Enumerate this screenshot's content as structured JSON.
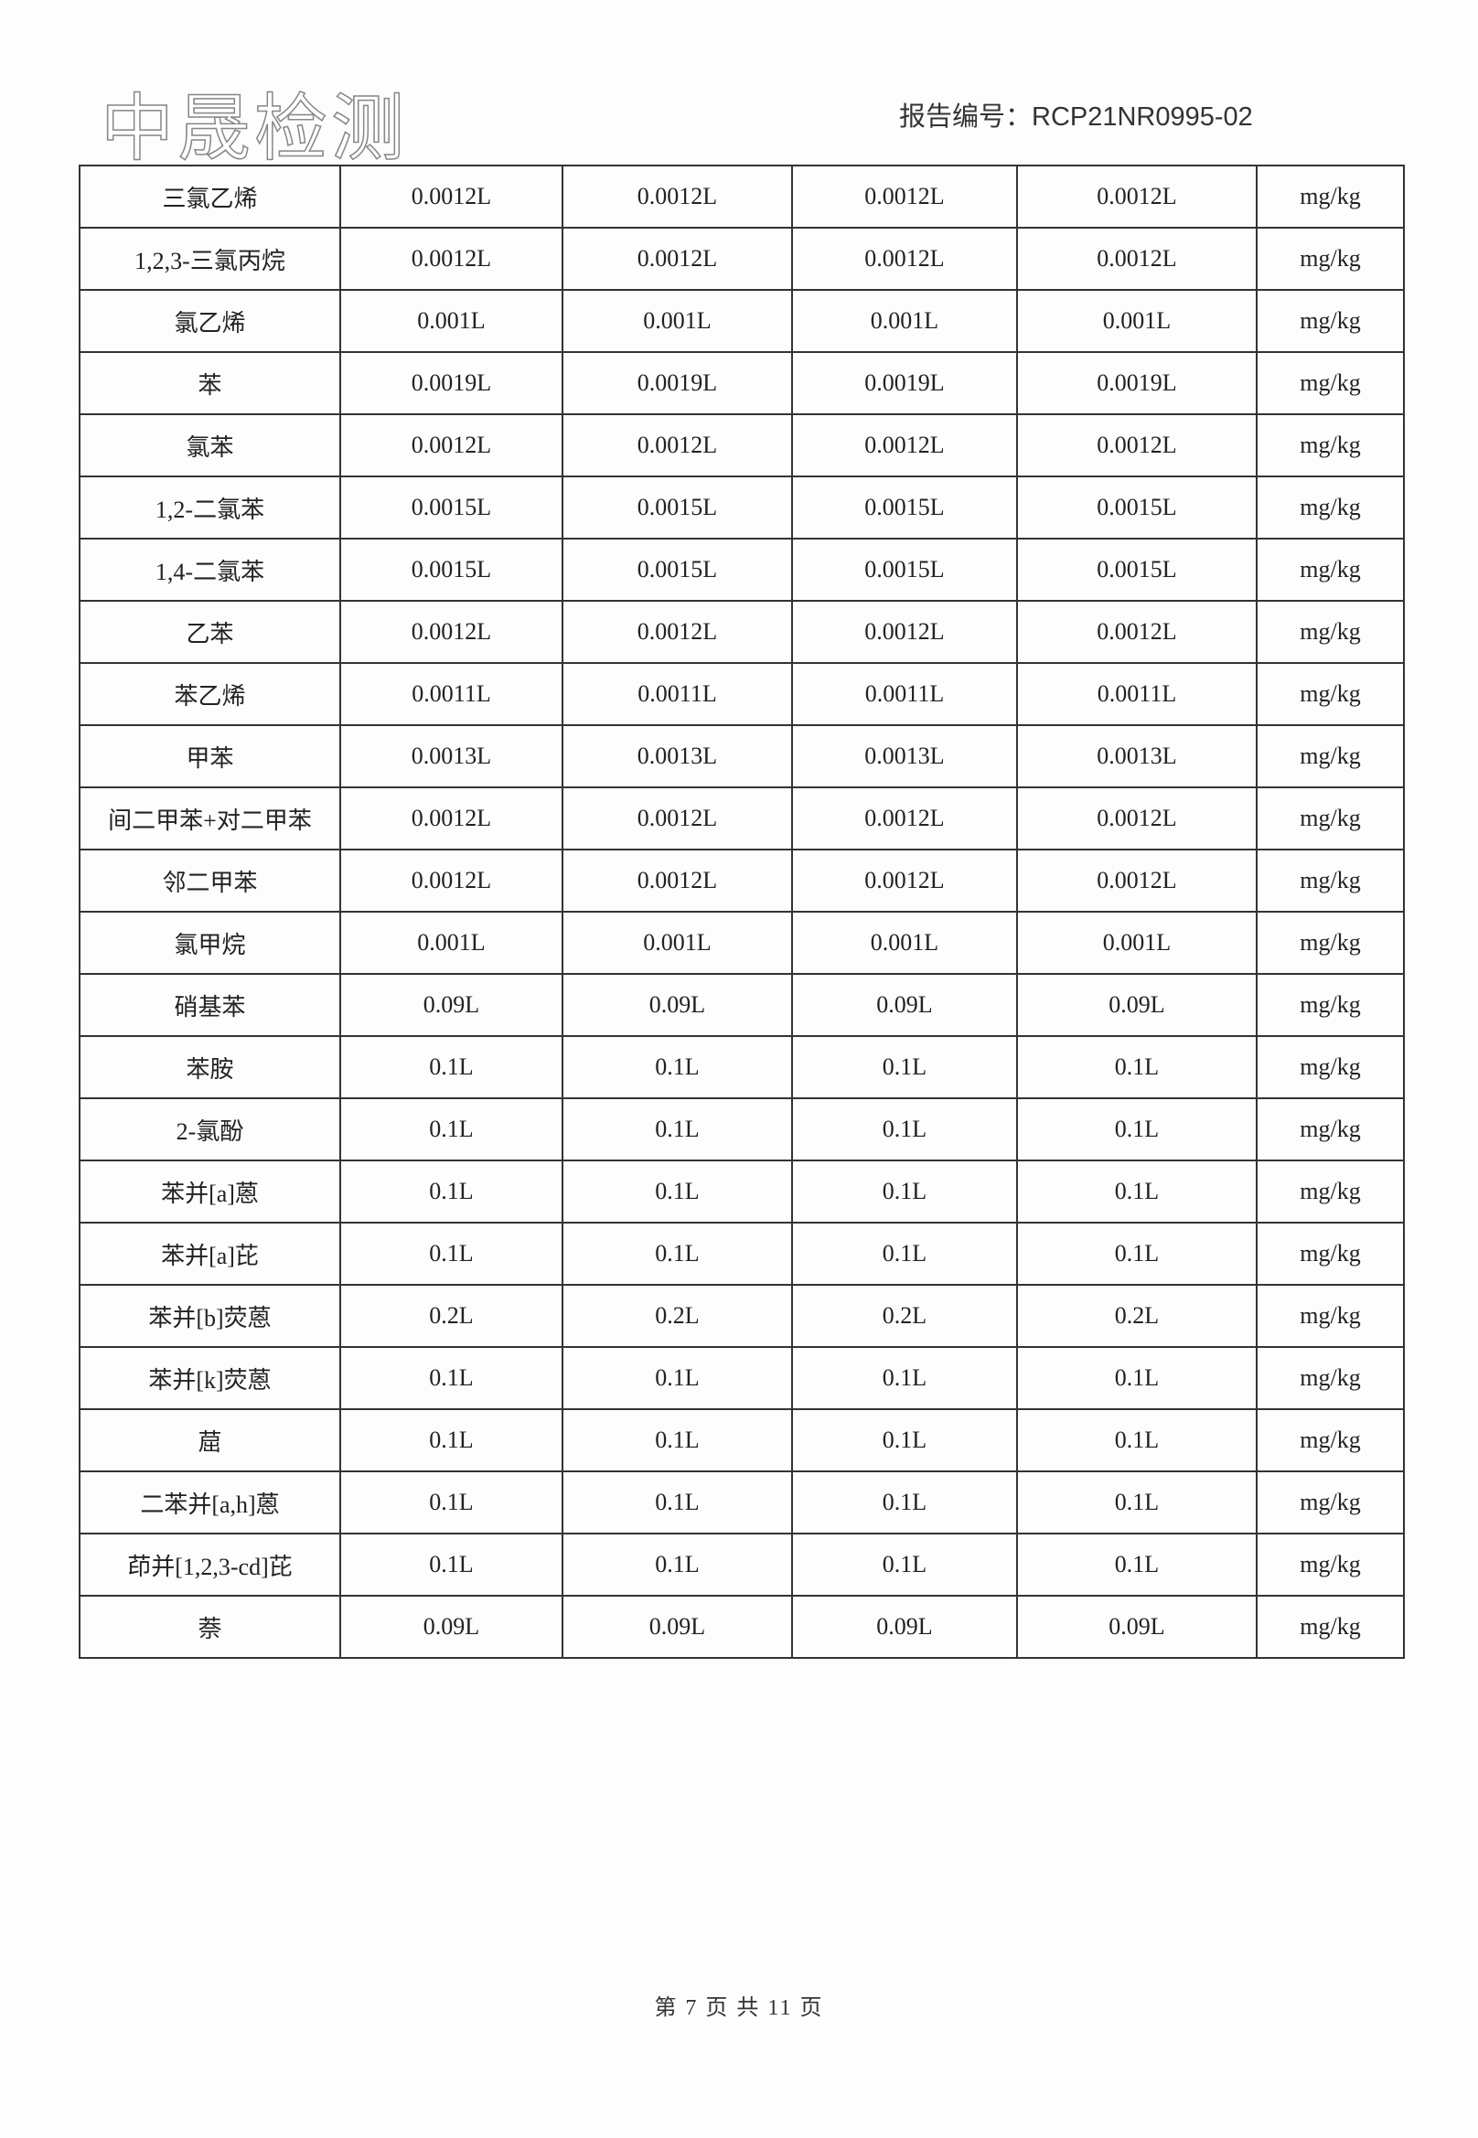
{
  "header": {
    "logo_text": "中晟检测",
    "report_number": "报告编号：RCP21NR0995-02"
  },
  "table": {
    "rows": [
      {
        "name": "三氯乙烯",
        "values": [
          "0.0012L",
          "0.0012L",
          "0.0012L",
          "0.0012L"
        ],
        "unit": "mg/kg"
      },
      {
        "name": "1,2,3-三氯丙烷",
        "values": [
          "0.0012L",
          "0.0012L",
          "0.0012L",
          "0.0012L"
        ],
        "unit": "mg/kg"
      },
      {
        "name": "氯乙烯",
        "values": [
          "0.001L",
          "0.001L",
          "0.001L",
          "0.001L"
        ],
        "unit": "mg/kg"
      },
      {
        "name": "苯",
        "values": [
          "0.0019L",
          "0.0019L",
          "0.0019L",
          "0.0019L"
        ],
        "unit": "mg/kg"
      },
      {
        "name": "氯苯",
        "values": [
          "0.0012L",
          "0.0012L",
          "0.0012L",
          "0.0012L"
        ],
        "unit": "mg/kg"
      },
      {
        "name": "1,2-二氯苯",
        "values": [
          "0.0015L",
          "0.0015L",
          "0.0015L",
          "0.0015L"
        ],
        "unit": "mg/kg"
      },
      {
        "name": "1,4-二氯苯",
        "values": [
          "0.0015L",
          "0.0015L",
          "0.0015L",
          "0.0015L"
        ],
        "unit": "mg/kg"
      },
      {
        "name": "乙苯",
        "values": [
          "0.0012L",
          "0.0012L",
          "0.0012L",
          "0.0012L"
        ],
        "unit": "mg/kg"
      },
      {
        "name": "苯乙烯",
        "values": [
          "0.0011L",
          "0.0011L",
          "0.0011L",
          "0.0011L"
        ],
        "unit": "mg/kg"
      },
      {
        "name": "甲苯",
        "values": [
          "0.0013L",
          "0.0013L",
          "0.0013L",
          "0.0013L"
        ],
        "unit": "mg/kg"
      },
      {
        "name": "间二甲苯+对二甲苯",
        "values": [
          "0.0012L",
          "0.0012L",
          "0.0012L",
          "0.0012L"
        ],
        "unit": "mg/kg"
      },
      {
        "name": "邻二甲苯",
        "values": [
          "0.0012L",
          "0.0012L",
          "0.0012L",
          "0.0012L"
        ],
        "unit": "mg/kg"
      },
      {
        "name": "氯甲烷",
        "values": [
          "0.001L",
          "0.001L",
          "0.001L",
          "0.001L"
        ],
        "unit": "mg/kg"
      },
      {
        "name": "硝基苯",
        "values": [
          "0.09L",
          "0.09L",
          "0.09L",
          "0.09L"
        ],
        "unit": "mg/kg"
      },
      {
        "name": "苯胺",
        "values": [
          "0.1L",
          "0.1L",
          "0.1L",
          "0.1L"
        ],
        "unit": "mg/kg"
      },
      {
        "name": "2-氯酚",
        "values": [
          "0.1L",
          "0.1L",
          "0.1L",
          "0.1L"
        ],
        "unit": "mg/kg"
      },
      {
        "name": "苯并[a]蒽",
        "values": [
          "0.1L",
          "0.1L",
          "0.1L",
          "0.1L"
        ],
        "unit": "mg/kg"
      },
      {
        "name": "苯并[a]芘",
        "values": [
          "0.1L",
          "0.1L",
          "0.1L",
          "0.1L"
        ],
        "unit": "mg/kg"
      },
      {
        "name": "苯并[b]荧蒽",
        "values": [
          "0.2L",
          "0.2L",
          "0.2L",
          "0.2L"
        ],
        "unit": "mg/kg"
      },
      {
        "name": "苯并[k]荧蒽",
        "values": [
          "0.1L",
          "0.1L",
          "0.1L",
          "0.1L"
        ],
        "unit": "mg/kg"
      },
      {
        "name": "䓛",
        "values": [
          "0.1L",
          "0.1L",
          "0.1L",
          "0.1L"
        ],
        "unit": "mg/kg"
      },
      {
        "name": "二苯并[a,h]蒽",
        "values": [
          "0.1L",
          "0.1L",
          "0.1L",
          "0.1L"
        ],
        "unit": "mg/kg"
      },
      {
        "name": "茚并[1,2,3-cd]芘",
        "values": [
          "0.1L",
          "0.1L",
          "0.1L",
          "0.1L"
        ],
        "unit": "mg/kg"
      },
      {
        "name": "萘",
        "values": [
          "0.09L",
          "0.09L",
          "0.09L",
          "0.09L"
        ],
        "unit": "mg/kg"
      }
    ]
  },
  "footer": {
    "page_text": "第 7 页 共 11 页"
  }
}
